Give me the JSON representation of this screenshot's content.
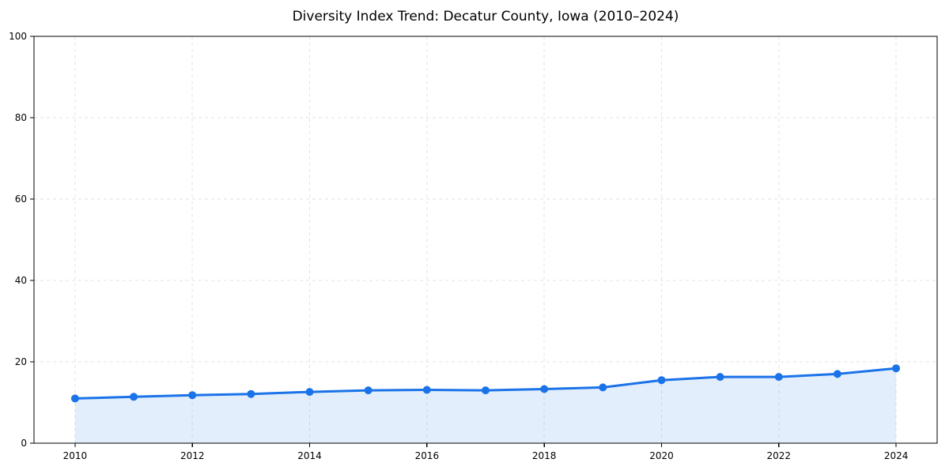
{
  "chart_data": {
    "type": "line",
    "title": "Diversity Index Trend: Decatur County, Iowa (2010–2024)",
    "xlabel": "",
    "ylabel": "",
    "x": [
      2010,
      2011,
      2012,
      2013,
      2014,
      2015,
      2016,
      2017,
      2018,
      2019,
      2020,
      2021,
      2022,
      2023,
      2024
    ],
    "values": [
      11.0,
      11.4,
      11.8,
      12.1,
      12.6,
      13.0,
      13.1,
      13.0,
      13.3,
      13.7,
      15.5,
      16.3,
      16.3,
      17.0,
      18.4
    ],
    "xticks": [
      2010,
      2012,
      2014,
      2016,
      2018,
      2020,
      2022,
      2024
    ],
    "yticks": [
      0,
      20,
      40,
      60,
      80,
      100
    ],
    "xlim": [
      2009.3,
      2024.7
    ],
    "ylim": [
      0,
      100
    ],
    "grid": true,
    "grid_style": "dashed",
    "legend": "none",
    "area_fill": true,
    "markers": true,
    "colors": {
      "line": "#1a73e8",
      "marker": "#1a73e8",
      "area": "rgba(26,115,232,0.12)",
      "grid": "#e3e3e3",
      "axis": "#000000",
      "text": "#000000",
      "background": "#ffffff"
    }
  }
}
